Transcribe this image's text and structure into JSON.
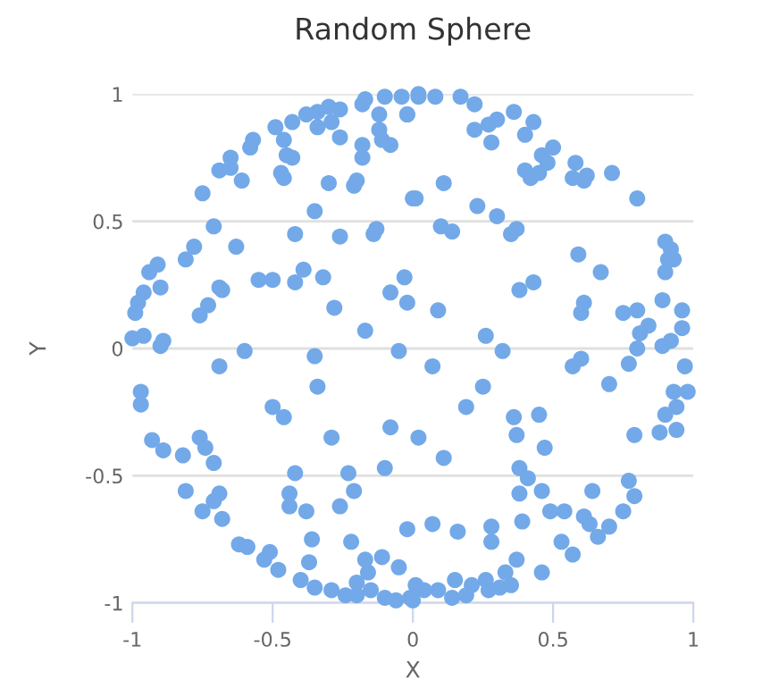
{
  "chart_data": {
    "type": "scatter",
    "title": "Random Sphere",
    "xlabel": "X",
    "ylabel": "Y",
    "xlim": [
      -1,
      1
    ],
    "ylim": [
      -1,
      1
    ],
    "xticks": [
      -1,
      -0.5,
      0,
      0.5,
      1
    ],
    "yticks": [
      -1,
      -0.5,
      0,
      0.5,
      1
    ],
    "grid": "y",
    "marker": "circle",
    "series": [
      {
        "color": "#73a9e8",
        "x": [
          -0.17,
          -0.1,
          -0.04,
          0.02,
          -0.02,
          -0.12,
          -0.18,
          -0.26,
          -0.3,
          -0.34,
          -0.38,
          -0.29,
          -0.34,
          -0.43,
          -0.49,
          -0.46,
          -0.45,
          -0.43,
          -0.47,
          -0.46,
          -0.57,
          -0.58,
          -0.26,
          -0.18,
          -0.18,
          -0.12,
          -0.11,
          -0.08,
          -0.65,
          -0.69,
          -0.65,
          -0.61,
          -0.75,
          -0.3,
          -0.2,
          -0.21,
          0.0,
          -0.35,
          -0.71,
          -0.42,
          -0.26,
          -0.63,
          -0.78,
          -0.81,
          -0.14,
          -0.13,
          -0.91,
          -0.94,
          -0.9,
          -0.69,
          -0.68,
          -0.55,
          -0.5,
          -0.42,
          -0.39,
          -0.32,
          -0.03,
          -0.08,
          -0.02,
          -0.28,
          -0.76,
          -0.73,
          -0.96,
          -0.98,
          -0.99,
          -1.0,
          -0.96,
          -0.89,
          -0.17,
          -0.05,
          -0.6,
          -0.9,
          0.02,
          0.08,
          0.17,
          0.22,
          -0.02,
          0.22,
          0.27,
          0.3,
          0.36,
          0.43,
          0.28,
          0.4,
          0.46,
          0.5,
          0.48,
          0.4,
          0.42,
          0.45,
          0.58,
          0.57,
          0.61,
          0.62,
          0.71,
          0.8,
          0.11,
          0.01,
          0.23,
          0.3,
          0.35,
          0.37,
          0.1,
          0.14,
          0.59,
          0.67,
          0.9,
          0.92,
          0.91,
          0.93,
          0.9,
          0.09,
          0.38,
          0.43,
          0.61,
          0.6,
          0.75,
          0.8,
          0.89,
          0.96,
          0.96,
          0.84,
          0.81,
          0.26,
          0.32,
          0.92,
          0.89,
          0.8,
          -0.69,
          -0.35,
          -0.97,
          -0.97,
          -0.5,
          -0.46,
          -0.34,
          -0.93,
          -0.89,
          -0.82,
          -0.76,
          -0.74,
          -0.71,
          -0.29,
          -0.08,
          0.02,
          -0.1,
          -0.42,
          -0.23,
          -0.21,
          -0.26,
          -0.44,
          -0.44,
          -0.38,
          -0.81,
          -0.69,
          -0.71,
          -0.75,
          -0.68,
          -0.62,
          -0.59,
          -0.53,
          -0.51,
          -0.48,
          -0.36,
          -0.37,
          -0.22,
          -0.17,
          -0.16,
          -0.11,
          -0.05,
          -0.02,
          -0.4,
          -0.35,
          -0.29,
          -0.24,
          -0.2,
          -0.2,
          -0.15,
          -0.1,
          -0.06,
          -0.01,
          0.01,
          0.07,
          0.57,
          0.6,
          0.77,
          0.97,
          0.7,
          0.25,
          0.93,
          0.98,
          0.94,
          0.9,
          0.19,
          0.36,
          0.45,
          0.37,
          0.47,
          0.11,
          0.79,
          0.88,
          0.94,
          0.38,
          0.41,
          0.38,
          0.46,
          0.64,
          0.77,
          0.79,
          0.75,
          0.49,
          0.54,
          0.61,
          0.63,
          0.7,
          0.66,
          0.39,
          0.53,
          0.57,
          0.07,
          0.16,
          0.28,
          0.28,
          0.37,
          0.33,
          0.46,
          0.04,
          0.09,
          0.15,
          0.14,
          0.19,
          0.21,
          0.26,
          0.27,
          0.31,
          0.35,
          0.0
        ],
        "values": [
          0.98,
          0.99,
          0.99,
          0.99,
          0.92,
          0.92,
          0.96,
          0.94,
          0.95,
          0.93,
          0.92,
          0.89,
          0.87,
          0.89,
          0.87,
          0.82,
          0.76,
          0.75,
          0.69,
          0.67,
          0.82,
          0.79,
          0.83,
          0.8,
          0.75,
          0.86,
          0.82,
          0.8,
          0.75,
          0.7,
          0.71,
          0.66,
          0.61,
          0.65,
          0.66,
          0.64,
          0.59,
          0.54,
          0.48,
          0.45,
          0.44,
          0.4,
          0.4,
          0.35,
          0.45,
          0.47,
          0.33,
          0.3,
          0.24,
          0.24,
          0.23,
          0.27,
          0.27,
          0.26,
          0.31,
          0.28,
          0.28,
          0.22,
          0.18,
          0.16,
          0.13,
          0.17,
          0.22,
          0.18,
          0.14,
          0.04,
          0.05,
          0.03,
          0.07,
          -0.01,
          -0.01,
          0.01,
          1.0,
          0.99,
          0.99,
          0.96,
          0.92,
          0.86,
          0.88,
          0.9,
          0.93,
          0.89,
          0.81,
          0.84,
          0.76,
          0.79,
          0.73,
          0.7,
          0.67,
          0.69,
          0.73,
          0.67,
          0.66,
          0.68,
          0.69,
          0.59,
          0.65,
          0.59,
          0.56,
          0.52,
          0.45,
          0.47,
          0.48,
          0.46,
          0.37,
          0.3,
          0.42,
          0.39,
          0.35,
          0.35,
          0.3,
          0.15,
          0.23,
          0.26,
          0.18,
          0.14,
          0.14,
          0.15,
          0.19,
          0.15,
          0.08,
          0.09,
          0.06,
          0.05,
          -0.01,
          0.03,
          0.01,
          0.0,
          -0.07,
          -0.03,
          -0.17,
          -0.22,
          -0.23,
          -0.27,
          -0.15,
          -0.36,
          -0.4,
          -0.42,
          -0.35,
          -0.39,
          -0.45,
          -0.35,
          -0.31,
          -0.35,
          -0.47,
          -0.49,
          -0.49,
          -0.56,
          -0.62,
          -0.57,
          -0.62,
          -0.64,
          -0.56,
          -0.57,
          -0.6,
          -0.64,
          -0.67,
          -0.77,
          -0.78,
          -0.83,
          -0.8,
          -0.87,
          -0.75,
          -0.84,
          -0.76,
          -0.83,
          -0.88,
          -0.82,
          -0.86,
          -0.71,
          -0.91,
          -0.94,
          -0.95,
          -0.97,
          -0.97,
          -0.92,
          -0.95,
          -0.98,
          -0.99,
          -0.98,
          -0.93,
          -0.07,
          -0.07,
          -0.04,
          -0.06,
          -0.07,
          -0.14,
          -0.15,
          -0.17,
          -0.17,
          -0.23,
          -0.26,
          -0.23,
          -0.27,
          -0.26,
          -0.34,
          -0.39,
          -0.43,
          -0.34,
          -0.33,
          -0.32,
          -0.47,
          -0.51,
          -0.57,
          -0.56,
          -0.56,
          -0.52,
          -0.58,
          -0.64,
          -0.64,
          -0.64,
          -0.66,
          -0.69,
          -0.7,
          -0.74,
          -0.68,
          -0.76,
          -0.81,
          -0.69,
          -0.72,
          -0.7,
          -0.76,
          -0.83,
          -0.88,
          -0.88,
          -0.95,
          -0.95,
          -0.91,
          -0.98,
          -0.97,
          -0.93,
          -0.91,
          -0.95,
          -0.94,
          -0.93,
          -0.99
        ]
      }
    ]
  }
}
